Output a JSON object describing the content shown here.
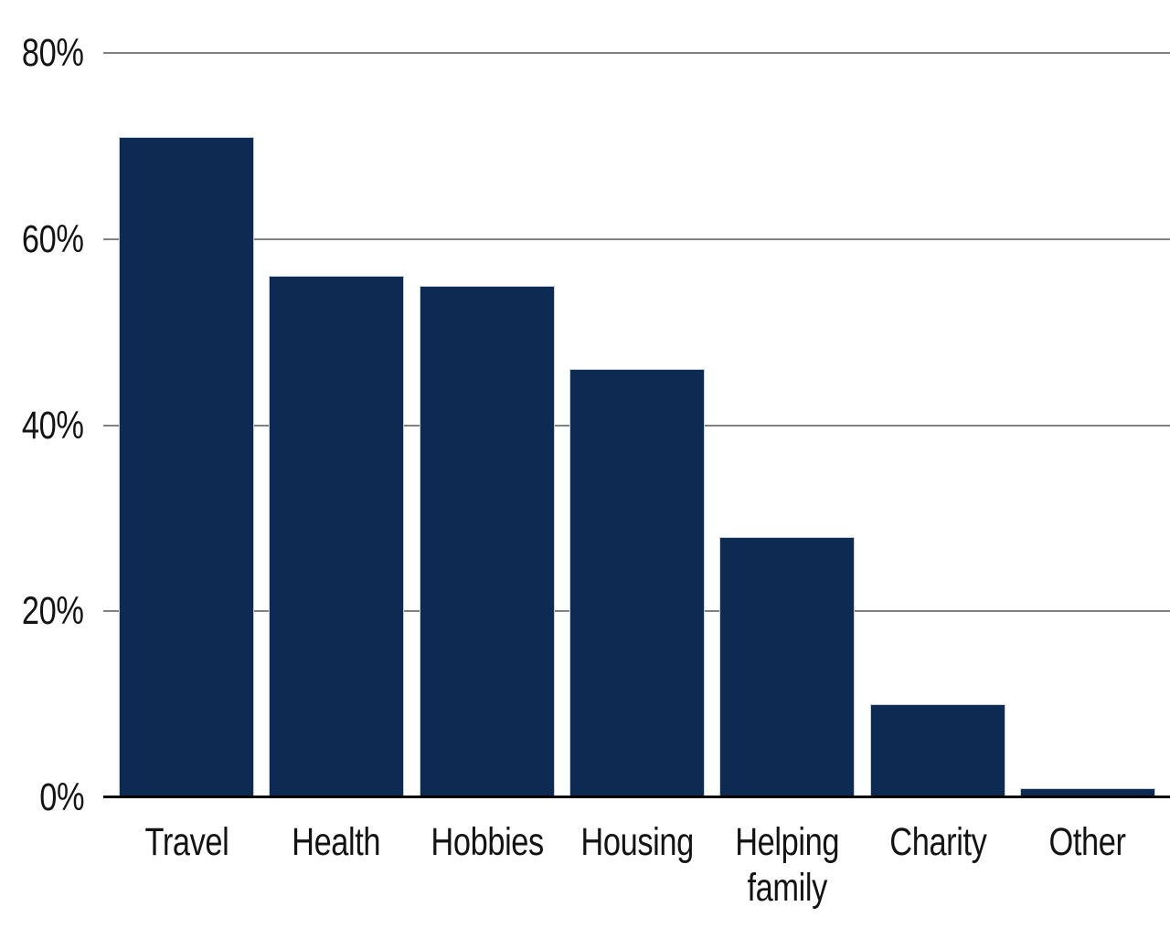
{
  "chart_data": {
    "type": "bar",
    "title": "",
    "xlabel": "",
    "ylabel": "",
    "categories": [
      "Travel",
      "Health",
      "Hobbies",
      "Housing",
      "Helping family",
      "Charity",
      "Other"
    ],
    "values": [
      71,
      56,
      55,
      46,
      28,
      10,
      1
    ],
    "unit": "%",
    "xtick_labels": [
      "Travel",
      "Health",
      "Hobbies",
      "Housing",
      "Helping\nfamily",
      "Charity",
      "Other"
    ],
    "yticks": [
      0,
      20,
      40,
      60,
      80
    ],
    "ytick_labels": [
      "0%",
      "20%",
      "40%",
      "60%",
      "80%"
    ],
    "ylim": [
      0,
      80
    ],
    "grid": true,
    "legend": "none",
    "colors": {
      "bar_fill": "#0c2a52",
      "bar_border": "#c5cfdc",
      "gridline": "#828282",
      "axis_line": "#000000",
      "tick_text": "#131313",
      "background": "#ffffff"
    }
  }
}
